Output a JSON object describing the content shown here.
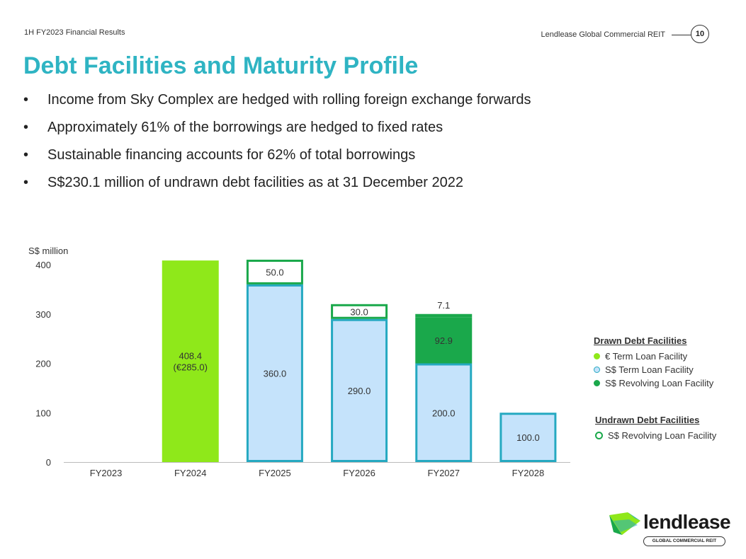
{
  "header": {
    "left_text": "1H FY2023 Financial Results",
    "right_text": "Lendlease Global Commercial REIT",
    "page_number": "10"
  },
  "title": "Debt Facilities and Maturity Profile",
  "bullets": [
    "Income from Sky Complex are hedged with rolling foreign exchange forwards",
    "Approximately 61% of the borrowings are hedged to fixed rates",
    "Sustainable financing accounts for 62% of total borrowings",
    "S$230.1 million of undrawn debt facilities as at 31 December 2022"
  ],
  "chart_data": {
    "type": "bar",
    "stacked": true,
    "ylabel": "S$ million",
    "ylim": [
      0,
      400
    ],
    "yticks": [
      0,
      100,
      200,
      300,
      400
    ],
    "categories": [
      "FY2023",
      "FY2024",
      "FY2025",
      "FY2026",
      "FY2027",
      "FY2028"
    ],
    "series": [
      {
        "name": "€ Term Loan Facility",
        "group": "drawn",
        "values": [
          0,
          408.4,
          0,
          0,
          0,
          0
        ],
        "labels": [
          "",
          "408.4\n(€285.0)",
          "",
          "",
          "",
          ""
        ]
      },
      {
        "name": "S$ Term Loan Facility",
        "group": "drawn",
        "values": [
          0,
          0,
          360.0,
          290.0,
          200.0,
          100.0
        ],
        "labels": [
          "",
          "",
          "360.0",
          "290.0",
          "200.0",
          "100.0"
        ]
      },
      {
        "name": "S$ Revolving Loan Facility",
        "group": "drawn",
        "values": [
          0,
          0,
          0,
          0,
          92.9,
          0
        ],
        "labels": [
          "",
          "",
          "",
          "",
          "92.9",
          ""
        ]
      },
      {
        "name": "S$ Revolving Loan Facility",
        "group": "undrawn",
        "values": [
          0,
          0,
          50.0,
          30.0,
          7.1,
          0
        ],
        "labels": [
          "",
          "",
          "50.0",
          "30.0",
          "7.1",
          ""
        ]
      }
    ],
    "legend": {
      "placement": "right",
      "drawn_title": "Drawn Debt Facilities",
      "undrawn_title": "Undrawn Debt Facilities"
    }
  },
  "colors": {
    "euro_term": "#8fe81a",
    "sgd_term_fill": "#c5e3fb",
    "sgd_term_border": "#25a9c1",
    "sgd_revolving": "#1aa84b",
    "undrawn_border": "#1aa84b",
    "title": "#2fb4c3"
  },
  "logo": {
    "word": "lendlease",
    "tagline": "GLOBAL COMMERCIAL REIT"
  }
}
